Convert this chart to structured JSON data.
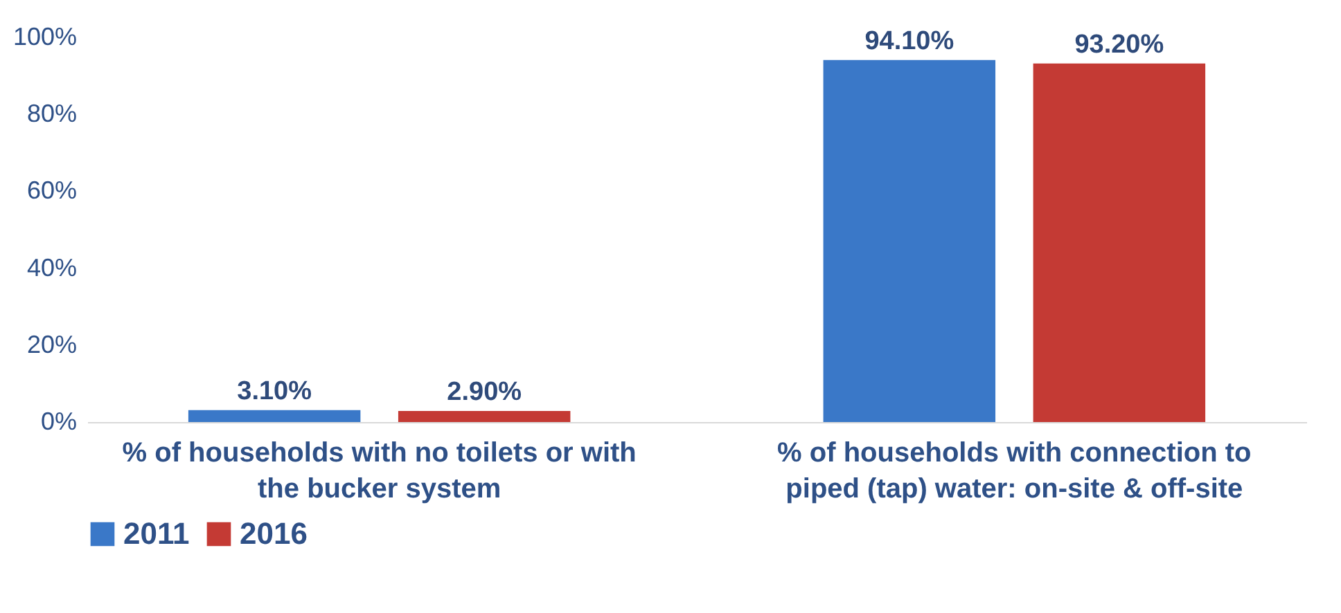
{
  "chart_data": {
    "type": "bar",
    "categories": [
      "% of households with no toilets or with the bucker system",
      "% of households with connection to piped (tap) water: on-site & off-site"
    ],
    "series": [
      {
        "name": "2011",
        "color": "#3a78c8",
        "values": [
          3.1,
          94.1
        ],
        "value_labels": [
          "3.10%",
          "94.10%"
        ]
      },
      {
        "name": "2016",
        "color": "#c43a34",
        "values": [
          2.9,
          93.2
        ],
        "value_labels": [
          "2.90%",
          "93.20%"
        ]
      }
    ],
    "ylim": [
      0,
      100
    ],
    "yticks": [
      {
        "value": 0,
        "label": "0%"
      },
      {
        "value": 20,
        "label": "20%"
      },
      {
        "value": 40,
        "label": "40%"
      },
      {
        "value": 60,
        "label": "60%"
      },
      {
        "value": 80,
        "label": "80%"
      },
      {
        "value": 100,
        "label": "100%"
      }
    ],
    "grid": false,
    "legend": "bottom"
  }
}
